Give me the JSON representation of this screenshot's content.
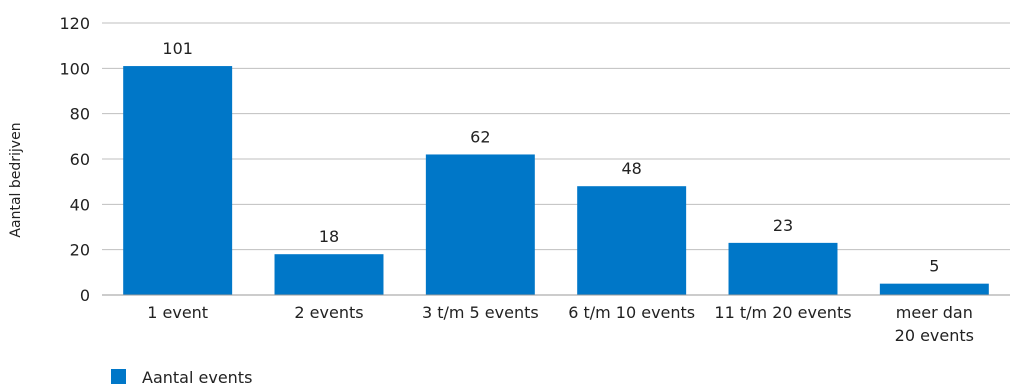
{
  "chart_data": {
    "type": "bar",
    "categories": [
      [
        "1 event"
      ],
      [
        "2 events"
      ],
      [
        "3 t/m 5 events"
      ],
      [
        "6 t/m 10 events"
      ],
      [
        "11 t/m 20 events"
      ],
      [
        "meer dan",
        "20 events"
      ]
    ],
    "series": [
      {
        "name": "Aantal events",
        "values": [
          101,
          18,
          62,
          48,
          23,
          5
        ]
      }
    ],
    "title": "",
    "xlabel": "",
    "ylabel": "Aantal bedrijven",
    "ylim": [
      0,
      120
    ],
    "yticks": [
      0,
      20,
      40,
      60,
      80,
      100,
      120
    ],
    "grid": true,
    "data_labels": true,
    "legend_position": "bottom-left",
    "bar_color": "#0077c8"
  }
}
